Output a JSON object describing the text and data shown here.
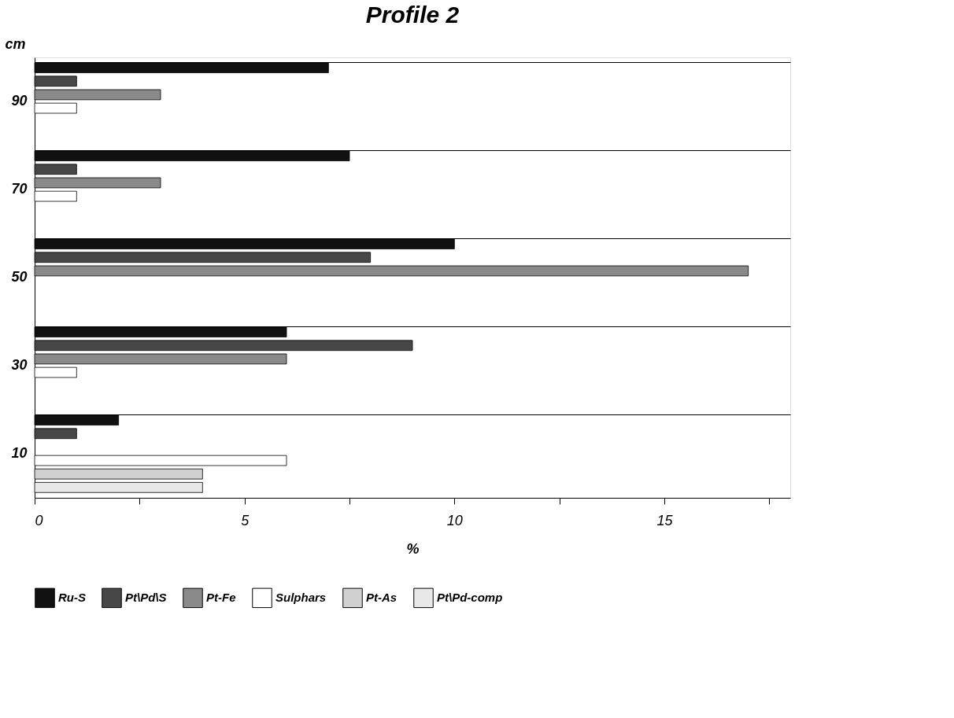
{
  "chart_data": {
    "type": "bar",
    "orientation": "horizontal",
    "title": "Profile 2",
    "xlabel": "%",
    "ylabel": "cm",
    "categories": [
      "90",
      "70",
      "50",
      "30",
      "10"
    ],
    "series": [
      {
        "name": "Ru-S",
        "color": "#111111",
        "values": [
          7,
          7.5,
          10,
          6,
          2
        ]
      },
      {
        "name": "Pt\\Pd\\S",
        "color": "#474747",
        "values": [
          1,
          1,
          8,
          9,
          1
        ]
      },
      {
        "name": "Pt-Fe",
        "color": "#8a8a8a",
        "values": [
          3,
          3,
          17,
          6,
          null
        ]
      },
      {
        "name": "Sulphars",
        "color": "#ffffff",
        "values": [
          1,
          1,
          null,
          1,
          6
        ]
      },
      {
        "name": "Pt-As",
        "color": "#d0d0d0",
        "values": [
          null,
          null,
          null,
          null,
          4
        ]
      },
      {
        "name": "Pt\\Pd-comp",
        "color": "#e8e8e8",
        "values": [
          null,
          null,
          null,
          null,
          4
        ]
      }
    ],
    "xlim": [
      0,
      18
    ],
    "xticks": [
      0,
      {
        "value": 2.5,
        "label": null
      },
      5,
      {
        "value": 7.5,
        "label": null
      },
      10,
      {
        "value": 12.5,
        "label": null
      },
      15,
      {
        "value": 17.5,
        "label": null
      }
    ],
    "grid": "y",
    "legend": "bottom"
  }
}
